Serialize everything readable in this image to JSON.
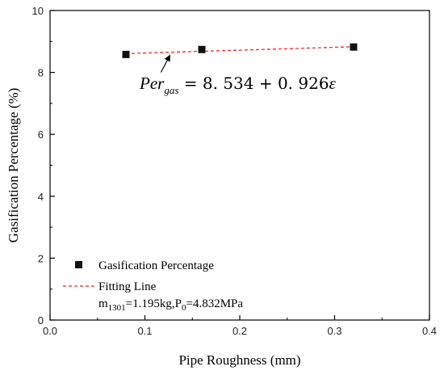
{
  "chart_data": {
    "type": "scatter",
    "xlabel": "Pipe Roughness (mm)",
    "ylabel": "Gasification Percentage (%)",
    "xlim": [
      0.0,
      0.4
    ],
    "ylim": [
      0,
      10
    ],
    "x_ticks": [
      "0.0",
      "0.1",
      "0.2",
      "0.3",
      "0.4"
    ],
    "y_ticks": [
      "0",
      "2",
      "4",
      "6",
      "8",
      "10"
    ],
    "grid": false,
    "legend_position": "bottom-left",
    "series": [
      {
        "name": "Gasification Percentage",
        "kind": "scatter",
        "marker": "square",
        "color": "#111111",
        "x": [
          0.08,
          0.16,
          0.32
        ],
        "y": [
          8.58,
          8.74,
          8.82
        ]
      },
      {
        "name": "Fitting Line",
        "kind": "line",
        "style": "dashed",
        "color": "#ff2020",
        "x": [
          0.08,
          0.32
        ],
        "y": [
          8.608,
          8.83
        ]
      }
    ],
    "annotation": {
      "var": "Per",
      "sub": "gas",
      "rest": " = 8. 534 + 0. 926",
      "eps": "ε",
      "arrow_target": [
        0.128,
        8.63
      ]
    },
    "condition_note": {
      "m": "m",
      "m_sub": "1301",
      "m_rest": "=1.195kg,P",
      "p_sub": "0",
      "p_rest": "=4.832MPa"
    }
  }
}
